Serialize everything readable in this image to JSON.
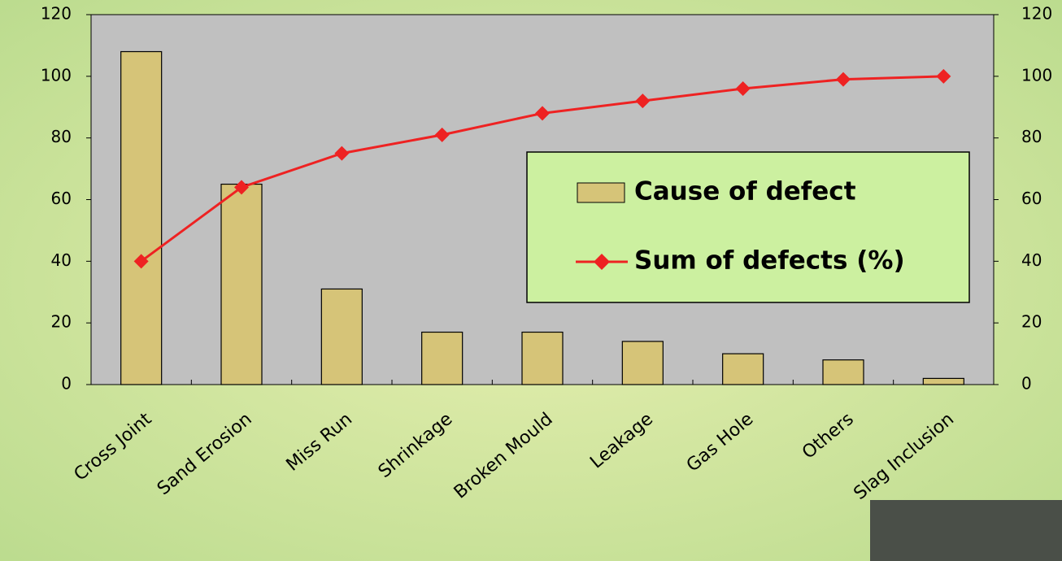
{
  "chart_data": {
    "type": "bar",
    "categories": [
      "Cross Joint",
      "Sand Erosion",
      "Miss Run",
      "Shrinkage",
      "Broken Mould",
      "Leakage",
      "Gas Hole",
      "Others",
      "Slag Inclusion"
    ],
    "series": [
      {
        "name": "Cause of defect",
        "type": "bar",
        "color": "#d6c478",
        "values": [
          108,
          65,
          31,
          17,
          17,
          14,
          10,
          8,
          2
        ]
      },
      {
        "name": "Sum of defects (%)",
        "type": "line",
        "axis": "y2",
        "color": "#ee2222",
        "values": [
          40,
          64,
          75,
          81,
          88,
          92,
          96,
          99,
          100
        ]
      }
    ],
    "ylim": [
      0,
      120
    ],
    "yticks": [
      0,
      20,
      40,
      60,
      80,
      100,
      120
    ],
    "y2lim": [
      0,
      120
    ],
    "y2ticks": [
      0,
      20,
      40,
      60,
      80,
      100,
      120
    ],
    "legend": "right"
  }
}
